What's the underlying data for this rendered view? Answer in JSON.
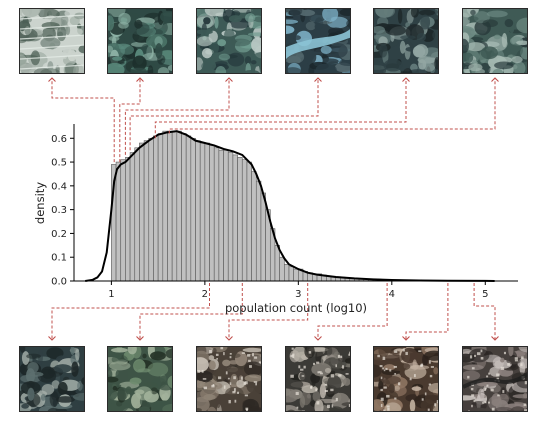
{
  "chart_data": {
    "type": "bar",
    "xlabel": "population count (log10)",
    "ylabel": "density",
    "xlim": [
      0.6,
      5.35
    ],
    "ylim": [
      0,
      0.66
    ],
    "xticks": [
      1,
      2,
      3,
      4,
      5
    ],
    "yticks": [
      0.0,
      0.1,
      0.2,
      0.3,
      0.4,
      0.5,
      0.6
    ],
    "grid": false,
    "histogram": {
      "bin_edges": [
        1.0,
        1.05,
        1.1,
        1.15,
        1.2,
        1.25,
        1.3,
        1.35,
        1.4,
        1.45,
        1.5,
        1.55,
        1.6,
        1.65,
        1.7,
        1.75,
        1.8,
        1.85,
        1.9,
        1.95,
        2.0,
        2.05,
        2.1,
        2.15,
        2.2,
        2.25,
        2.3,
        2.35,
        2.4,
        2.45,
        2.5,
        2.55,
        2.6,
        2.65,
        2.7,
        2.75,
        2.8,
        2.85,
        2.9,
        2.95,
        3.0,
        3.05,
        3.1,
        3.15,
        3.2,
        3.25,
        3.3,
        3.35,
        3.4,
        3.45,
        3.5,
        3.55,
        3.6,
        3.65,
        3.7,
        3.75,
        3.8,
        3.85,
        3.9,
        3.95,
        4.0,
        4.05,
        4.1,
        4.15,
        4.2,
        4.25,
        4.3,
        4.35,
        4.4,
        4.45,
        4.5,
        4.55,
        4.6,
        4.65,
        4.7,
        4.75,
        4.8,
        4.85,
        4.9,
        4.95,
        5.0,
        5.05,
        5.1
      ],
      "density": [
        0.49,
        0.5,
        0.51,
        0.52,
        0.54,
        0.56,
        0.58,
        0.59,
        0.6,
        0.61,
        0.62,
        0.63,
        0.63,
        0.63,
        0.63,
        0.62,
        0.61,
        0.6,
        0.59,
        0.58,
        0.58,
        0.57,
        0.56,
        0.55,
        0.55,
        0.54,
        0.53,
        0.52,
        0.51,
        0.5,
        0.46,
        0.42,
        0.37,
        0.3,
        0.22,
        0.15,
        0.1,
        0.07,
        0.06,
        0.05,
        0.05,
        0.04,
        0.035,
        0.03,
        0.03,
        0.025,
        0.02,
        0.02,
        0.018,
        0.016,
        0.014,
        0.012,
        0.011,
        0.01,
        0.009,
        0.008,
        0.007,
        0.006,
        0.005,
        0.005,
        0.004,
        0.004,
        0.003,
        0.003,
        0.003,
        0.002,
        0.002,
        0.002,
        0.002,
        0.002,
        0.001,
        0.001,
        0.001,
        0.001,
        0.001,
        0.001,
        0.001,
        0.001,
        0.001,
        0.001,
        0.001,
        0.001
      ]
    },
    "kde": {
      "x": [
        0.72,
        0.8,
        0.85,
        0.9,
        0.95,
        1.0,
        1.03,
        1.06,
        1.1,
        1.15,
        1.2,
        1.3,
        1.4,
        1.5,
        1.6,
        1.7,
        1.8,
        1.9,
        2.0,
        2.1,
        2.2,
        2.3,
        2.4,
        2.5,
        2.55,
        2.6,
        2.65,
        2.7,
        2.75,
        2.8,
        2.85,
        2.9,
        3.0,
        3.1,
        3.2,
        3.4,
        3.6,
        3.8,
        4.0,
        4.3,
        4.6,
        5.0,
        5.1
      ],
      "y": [
        0.0,
        0.005,
        0.015,
        0.04,
        0.12,
        0.3,
        0.42,
        0.47,
        0.49,
        0.5,
        0.52,
        0.56,
        0.59,
        0.615,
        0.625,
        0.63,
        0.615,
        0.59,
        0.58,
        0.57,
        0.555,
        0.545,
        0.53,
        0.49,
        0.45,
        0.4,
        0.33,
        0.25,
        0.18,
        0.13,
        0.095,
        0.07,
        0.05,
        0.035,
        0.027,
        0.017,
        0.011,
        0.007,
        0.004,
        0.002,
        0.001,
        0.0005,
        0.0
      ]
    },
    "connectors_top": [
      {
        "x": 1.03,
        "y": 0.5
      },
      {
        "x": 1.09,
        "y": 0.5
      },
      {
        "x": 1.15,
        "y": 0.53
      },
      {
        "x": 1.2,
        "y": 0.55
      },
      {
        "x": 1.47,
        "y": 0.6
      },
      {
        "x": 1.62,
        "y": 0.62
      }
    ],
    "connectors_bottom": [
      {
        "x": 2.05
      },
      {
        "x": 2.4
      },
      {
        "x": 3.1
      },
      {
        "x": 3.95
      },
      {
        "x": 4.6
      },
      {
        "x": 4.88
      }
    ]
  },
  "colors": {
    "bar_fill": "#c0c0c0",
    "bar_edge": "#5a5a5a",
    "kde_line": "#000000",
    "connector": "#c0504d",
    "axis": "#000000"
  },
  "thumbnails_top": [
    {
      "icon": "satellite-terraced-fields",
      "palette": [
        "#cbd3cd",
        "#7f8f86",
        "#4c5f55",
        "#a9b5ad"
      ]
    },
    {
      "icon": "satellite-forest",
      "palette": [
        "#2f4a45",
        "#5a8a7c",
        "#8fb3a6",
        "#1d2f2c"
      ]
    },
    {
      "icon": "satellite-forest",
      "palette": [
        "#3d5a56",
        "#6f9a8e",
        "#b9c8c3",
        "#23363a"
      ]
    },
    {
      "icon": "satellite-river",
      "palette": [
        "#2c3e46",
        "#7fb3c9",
        "#54696e",
        "#1b272c"
      ]
    },
    {
      "icon": "satellite-forest",
      "palette": [
        "#2f4145",
        "#657d7c",
        "#92a6a3",
        "#1c2628"
      ]
    },
    {
      "icon": "satellite-forest",
      "palette": [
        "#3f5a55",
        "#6f8c84",
        "#a5b9b2",
        "#27393a"
      ]
    }
  ],
  "thumbnails_bottom": [
    {
      "icon": "satellite-town",
      "palette": [
        "#2f3f42",
        "#5d7070",
        "#a3aea8",
        "#1d2728"
      ]
    },
    {
      "icon": "satellite-farmland",
      "palette": [
        "#3e5446",
        "#6f8c6f",
        "#a2b29b",
        "#253328"
      ]
    },
    {
      "icon": "satellite-suburb",
      "palette": [
        "#4a4138",
        "#8f8375",
        "#c7c0b5",
        "#2d2824"
      ]
    },
    {
      "icon": "satellite-suburb",
      "palette": [
        "#3b3a36",
        "#7e7a72",
        "#b8b2a8",
        "#24231f"
      ]
    },
    {
      "icon": "satellite-city",
      "palette": [
        "#4a3a2f",
        "#8e7562",
        "#c4b3a2",
        "#2b221c"
      ]
    },
    {
      "icon": "satellite-city",
      "palette": [
        "#46403d",
        "#8a807c",
        "#c9c2be",
        "#2a2624"
      ]
    }
  ]
}
